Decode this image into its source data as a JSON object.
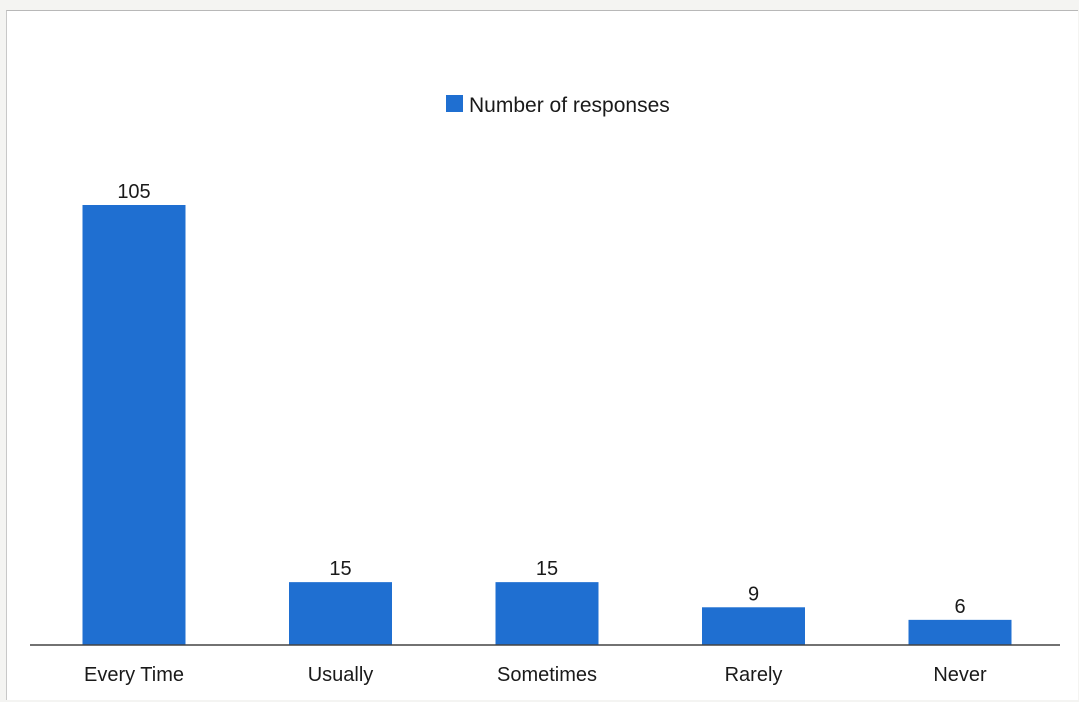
{
  "chart_data": {
    "type": "bar",
    "categories": [
      "Every Time",
      "Usually",
      "Sometimes",
      "Rarely",
      "Never"
    ],
    "series": [
      {
        "name": "Number of responses",
        "values": [
          105,
          15,
          15,
          9,
          6
        ]
      }
    ],
    "data_labels": [
      "105",
      "15",
      "15",
      "9",
      "6"
    ],
    "ylim": [
      0,
      105
    ],
    "y_axis_visible": false,
    "grid": false,
    "legend_position": "top-center",
    "colors": {
      "bar": "#1f6fd1",
      "axis": "#444444",
      "text": "#1a1a1a"
    }
  }
}
